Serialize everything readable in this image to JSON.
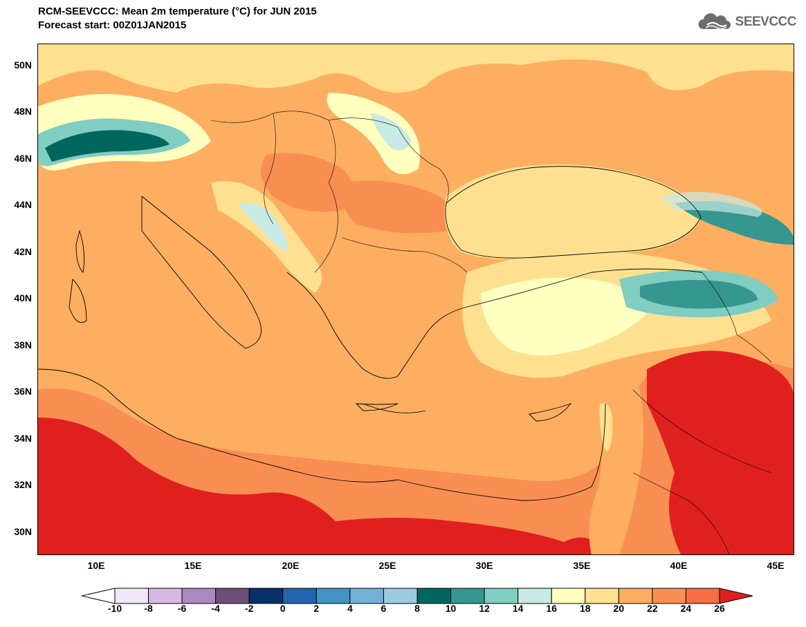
{
  "header": {
    "title_line1": "RCM-SEEVCCC: Mean 2m temperature (°C) for JUN 2015",
    "title_line2": "Forecast start: 00Z01JAN2015"
  },
  "logo": {
    "text": "SEEVCCC",
    "icon": "cloud-logo-icon"
  },
  "map": {
    "projection": "lat-lon",
    "lon_range": [
      7,
      46
    ],
    "lat_range": [
      29,
      51
    ],
    "lat_ticks": [
      "50N",
      "48N",
      "46N",
      "44N",
      "42N",
      "40N",
      "38N",
      "36N",
      "34N",
      "32N",
      "30N"
    ],
    "lat_tick_values": [
      50,
      48,
      46,
      44,
      42,
      40,
      38,
      36,
      34,
      32,
      30
    ],
    "lon_ticks": [
      "10E",
      "15E",
      "20E",
      "25E",
      "30E",
      "35E",
      "40E",
      "45E"
    ],
    "lon_tick_values": [
      10,
      15,
      20,
      25,
      30,
      35,
      40,
      45
    ],
    "sea_color": "#fdae61"
  },
  "colorbar": {
    "labels": [
      "-10",
      "-8",
      "-6",
      "-4",
      "-2",
      "0",
      "2",
      "4",
      "6",
      "8",
      "10",
      "12",
      "14",
      "16",
      "18",
      "20",
      "22",
      "24",
      "26"
    ],
    "colors": [
      "#ffffff",
      "#f0e6f6",
      "#d6b8e2",
      "#a98bc2",
      "#6c4f78",
      "#08306b",
      "#2166ac",
      "#4393c3",
      "#74b1d9",
      "#9ecae1",
      "#01665e",
      "#35978f",
      "#80cdc1",
      "#c7eae5",
      "#ffffbf",
      "#fee090",
      "#fdae61",
      "#f98e52",
      "#f46d43",
      "#e0201f"
    ]
  }
}
